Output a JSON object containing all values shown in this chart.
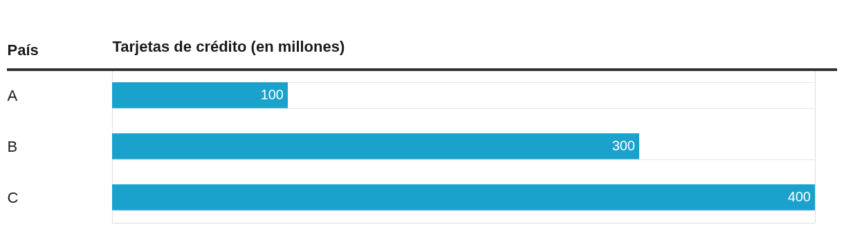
{
  "chart_data": {
    "type": "bar",
    "orientation": "horizontal",
    "ylabel": "País",
    "xlabel": "Tarjetas de crédito (en millones)",
    "categories": [
      "A",
      "B",
      "C"
    ],
    "values": [
      100,
      300,
      400
    ],
    "color": "#1aa1cc",
    "xlim": [
      0,
      400
    ],
    "data_labels": true,
    "grid": "y",
    "tick_labels": "y"
  }
}
